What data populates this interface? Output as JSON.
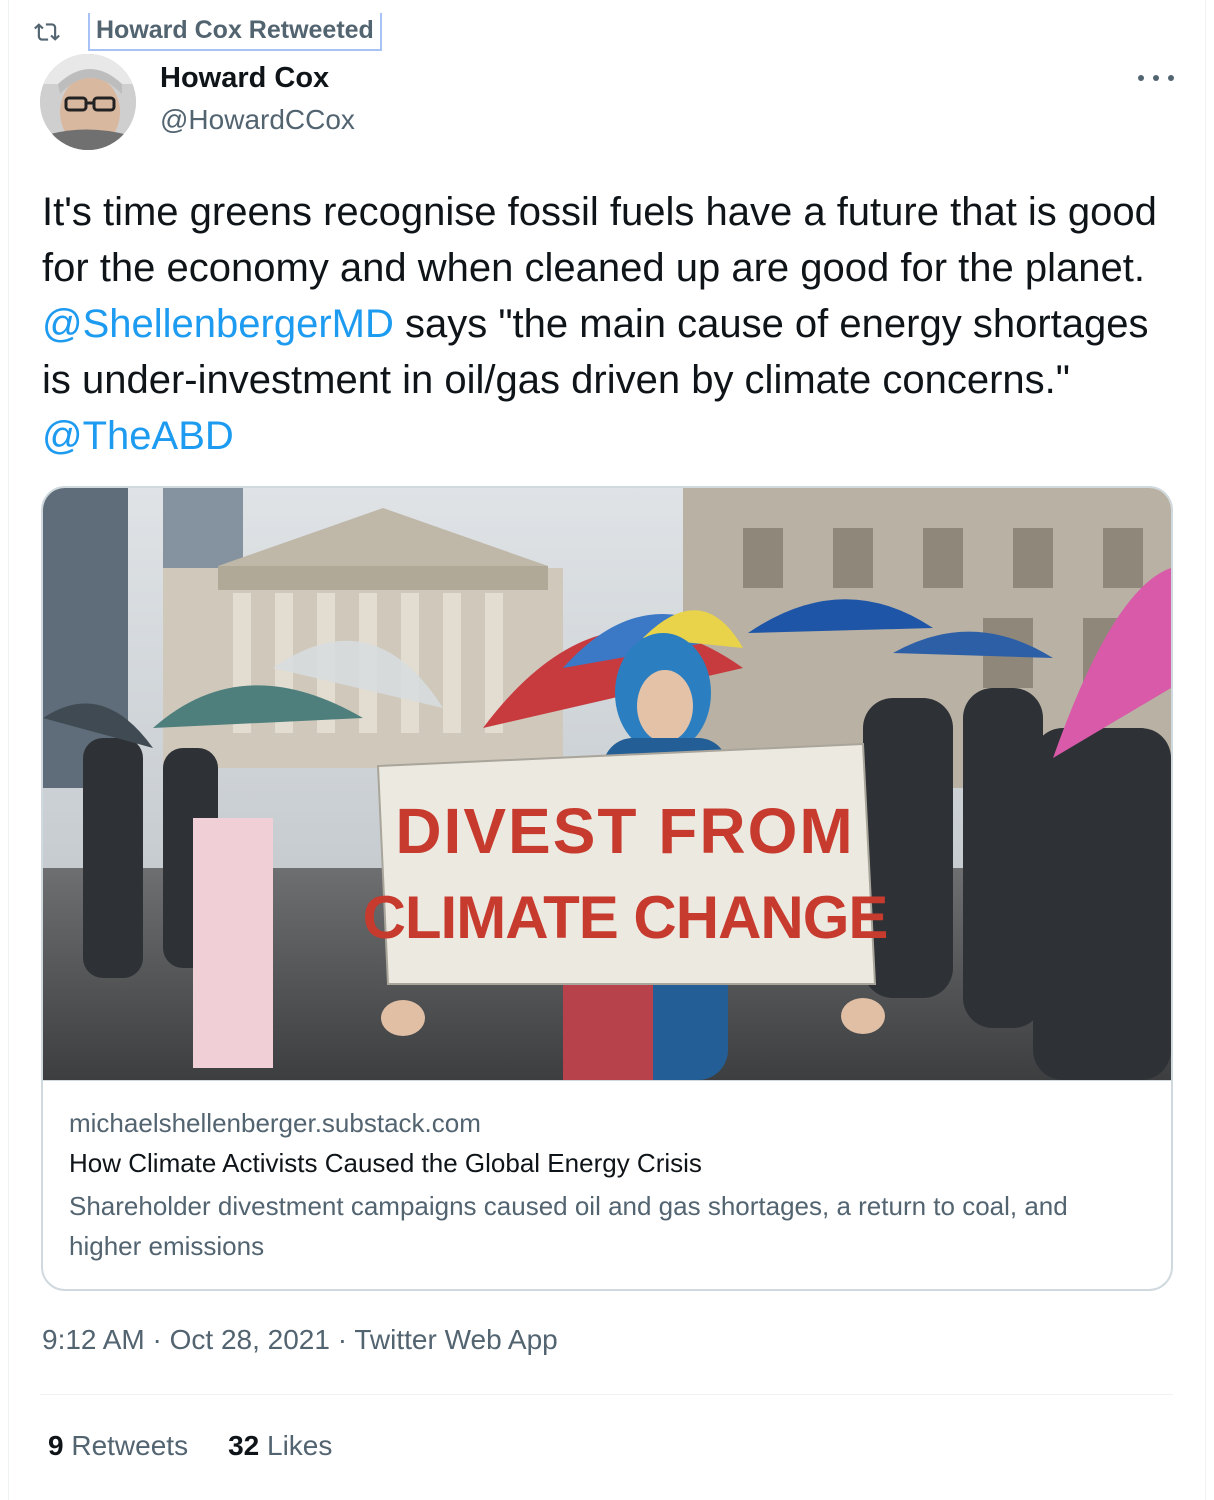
{
  "retweet": {
    "label": "Howard Cox Retweeted",
    "icon": "retweet-icon"
  },
  "author": {
    "name": "Howard Cox",
    "handle": "@HowardCCox"
  },
  "tweet": {
    "text_before": "It's time greens recognise fossil fuels have a future that is good for the economy and when cleaned up are good for the planet. ",
    "mention1": "@ShellenbergerMD",
    "text_middle": " says \"the main cause of energy shortages is under-investment in oil/gas driven by climate concerns.\" ",
    "mention2": "@TheABD"
  },
  "card": {
    "image_sign_line1": "DIVEST FROM",
    "image_sign_line2": "CLIMATE CHANGE",
    "domain": "michaelshellenberger.substack.com",
    "title": "How Climate Activists Caused the Global Energy Crisis",
    "description": "Shareholder divestment campaigns caused oil and gas shortages, a return to coal, and higher emissions"
  },
  "meta": {
    "time": "9:12 AM",
    "date": "Oct 28, 2021",
    "source": "Twitter Web App",
    "separator": "·"
  },
  "stats": {
    "retweets_count": "9",
    "retweets_label": "Retweets",
    "likes_count": "32",
    "likes_label": "Likes"
  },
  "colors": {
    "accent": "#1d9bf0",
    "secondary_text": "#536471",
    "border": "#cfd9de"
  }
}
